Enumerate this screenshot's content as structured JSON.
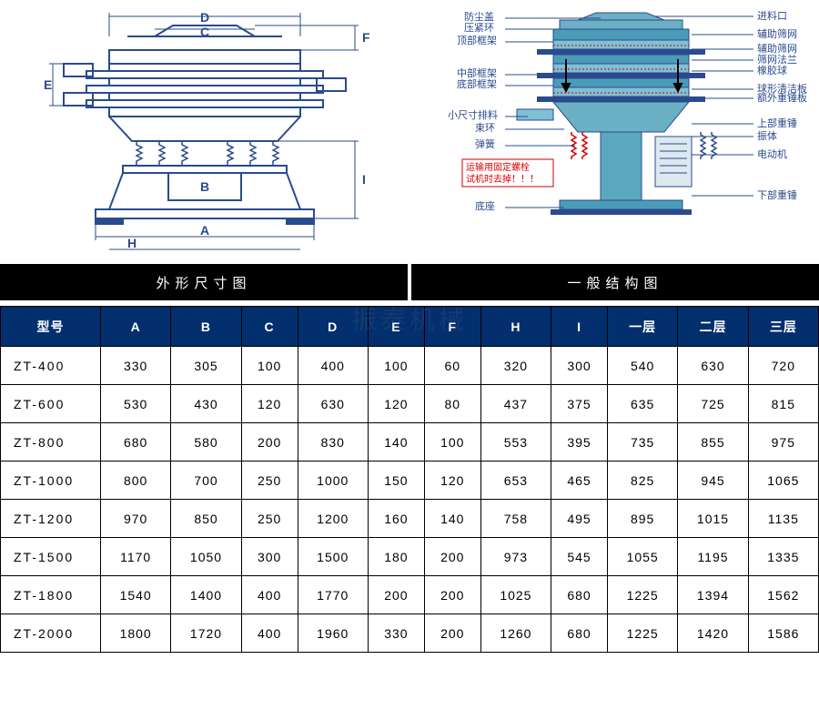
{
  "headers": {
    "left": "外形尺寸图",
    "right": "一般结构图"
  },
  "table": {
    "columns": [
      "型号",
      "A",
      "B",
      "C",
      "D",
      "E",
      "F",
      "H",
      "I",
      "一层",
      "二层",
      "三层"
    ],
    "rows": [
      [
        "ZT-400",
        "330",
        "305",
        "100",
        "400",
        "100",
        "60",
        "320",
        "300",
        "540",
        "630",
        "720"
      ],
      [
        "ZT-600",
        "530",
        "430",
        "120",
        "630",
        "120",
        "80",
        "437",
        "375",
        "635",
        "725",
        "815"
      ],
      [
        "ZT-800",
        "680",
        "580",
        "200",
        "830",
        "140",
        "100",
        "553",
        "395",
        "735",
        "855",
        "975"
      ],
      [
        "ZT-1000",
        "800",
        "700",
        "250",
        "1000",
        "150",
        "120",
        "653",
        "465",
        "825",
        "945",
        "1065"
      ],
      [
        "ZT-1200",
        "970",
        "850",
        "250",
        "1200",
        "160",
        "140",
        "758",
        "495",
        "895",
        "1015",
        "1135"
      ],
      [
        "ZT-1500",
        "1170",
        "1050",
        "300",
        "1500",
        "180",
        "200",
        "973",
        "545",
        "1055",
        "1195",
        "1335"
      ],
      [
        "ZT-1800",
        "1540",
        "1400",
        "400",
        "1770",
        "200",
        "200",
        "1025",
        "680",
        "1225",
        "1394",
        "1562"
      ],
      [
        "ZT-2000",
        "1800",
        "1720",
        "400",
        "1960",
        "330",
        "200",
        "1260",
        "680",
        "1225",
        "1420",
        "1586"
      ]
    ]
  },
  "leftDiagram": {
    "dims": {
      "A": "A",
      "B": "B",
      "C": "C",
      "D": "D",
      "E": "E",
      "F": "F",
      "H": "H",
      "I": "I"
    },
    "stroke": "#2a4b8d",
    "fill": "#ffffff"
  },
  "rightDiagram": {
    "labelsLeft": [
      "防尘盖",
      "压紧环",
      "顶部框架",
      "中部框架",
      "底部框架",
      "小尺寸排料",
      "束环",
      "弹簧",
      "底座"
    ],
    "labelsRight": [
      "进料口",
      "辅助筛网",
      "辅助筛网",
      "筛网法兰",
      "橡胶球",
      "球形清洁板",
      "额外重锤板",
      "上部重锤",
      "振体",
      "电动机",
      "下部重锤"
    ],
    "warning": [
      "运输用固定螺栓",
      "试机时去掉！！！"
    ],
    "mainColor": "#4a9bb8",
    "lineColor": "#2a4b8d",
    "redColor": "#d00000"
  },
  "watermark": "振泰机械"
}
